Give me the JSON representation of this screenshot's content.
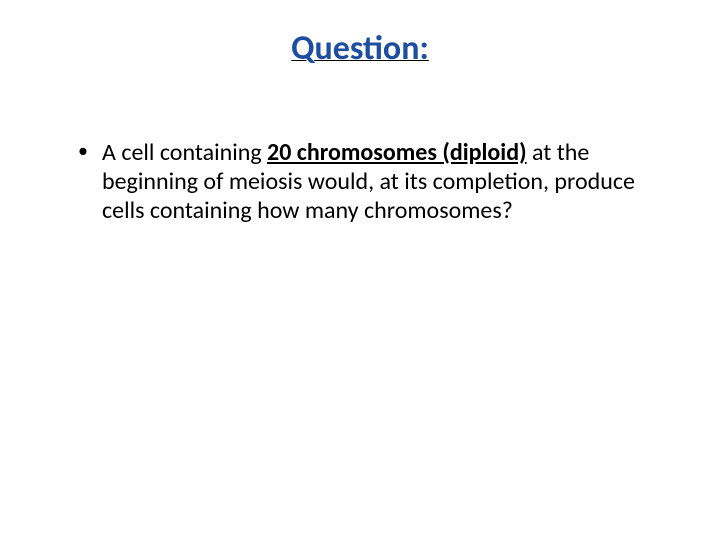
{
  "slide": {
    "title_text": "Question:",
    "title_color": "#1e4ea0",
    "title_fontsize": 34,
    "title_underline_color": "#000000",
    "body_fontsize": 24,
    "body_color": "#000000",
    "background_color": "#ffffff",
    "bullet": {
      "text_before": "A cell containing ",
      "emphasis": "20 chromosomes (diploid)",
      "text_after": " at the beginning of meiosis would, at its completion, produce cells containing how many chromosomes?"
    }
  }
}
